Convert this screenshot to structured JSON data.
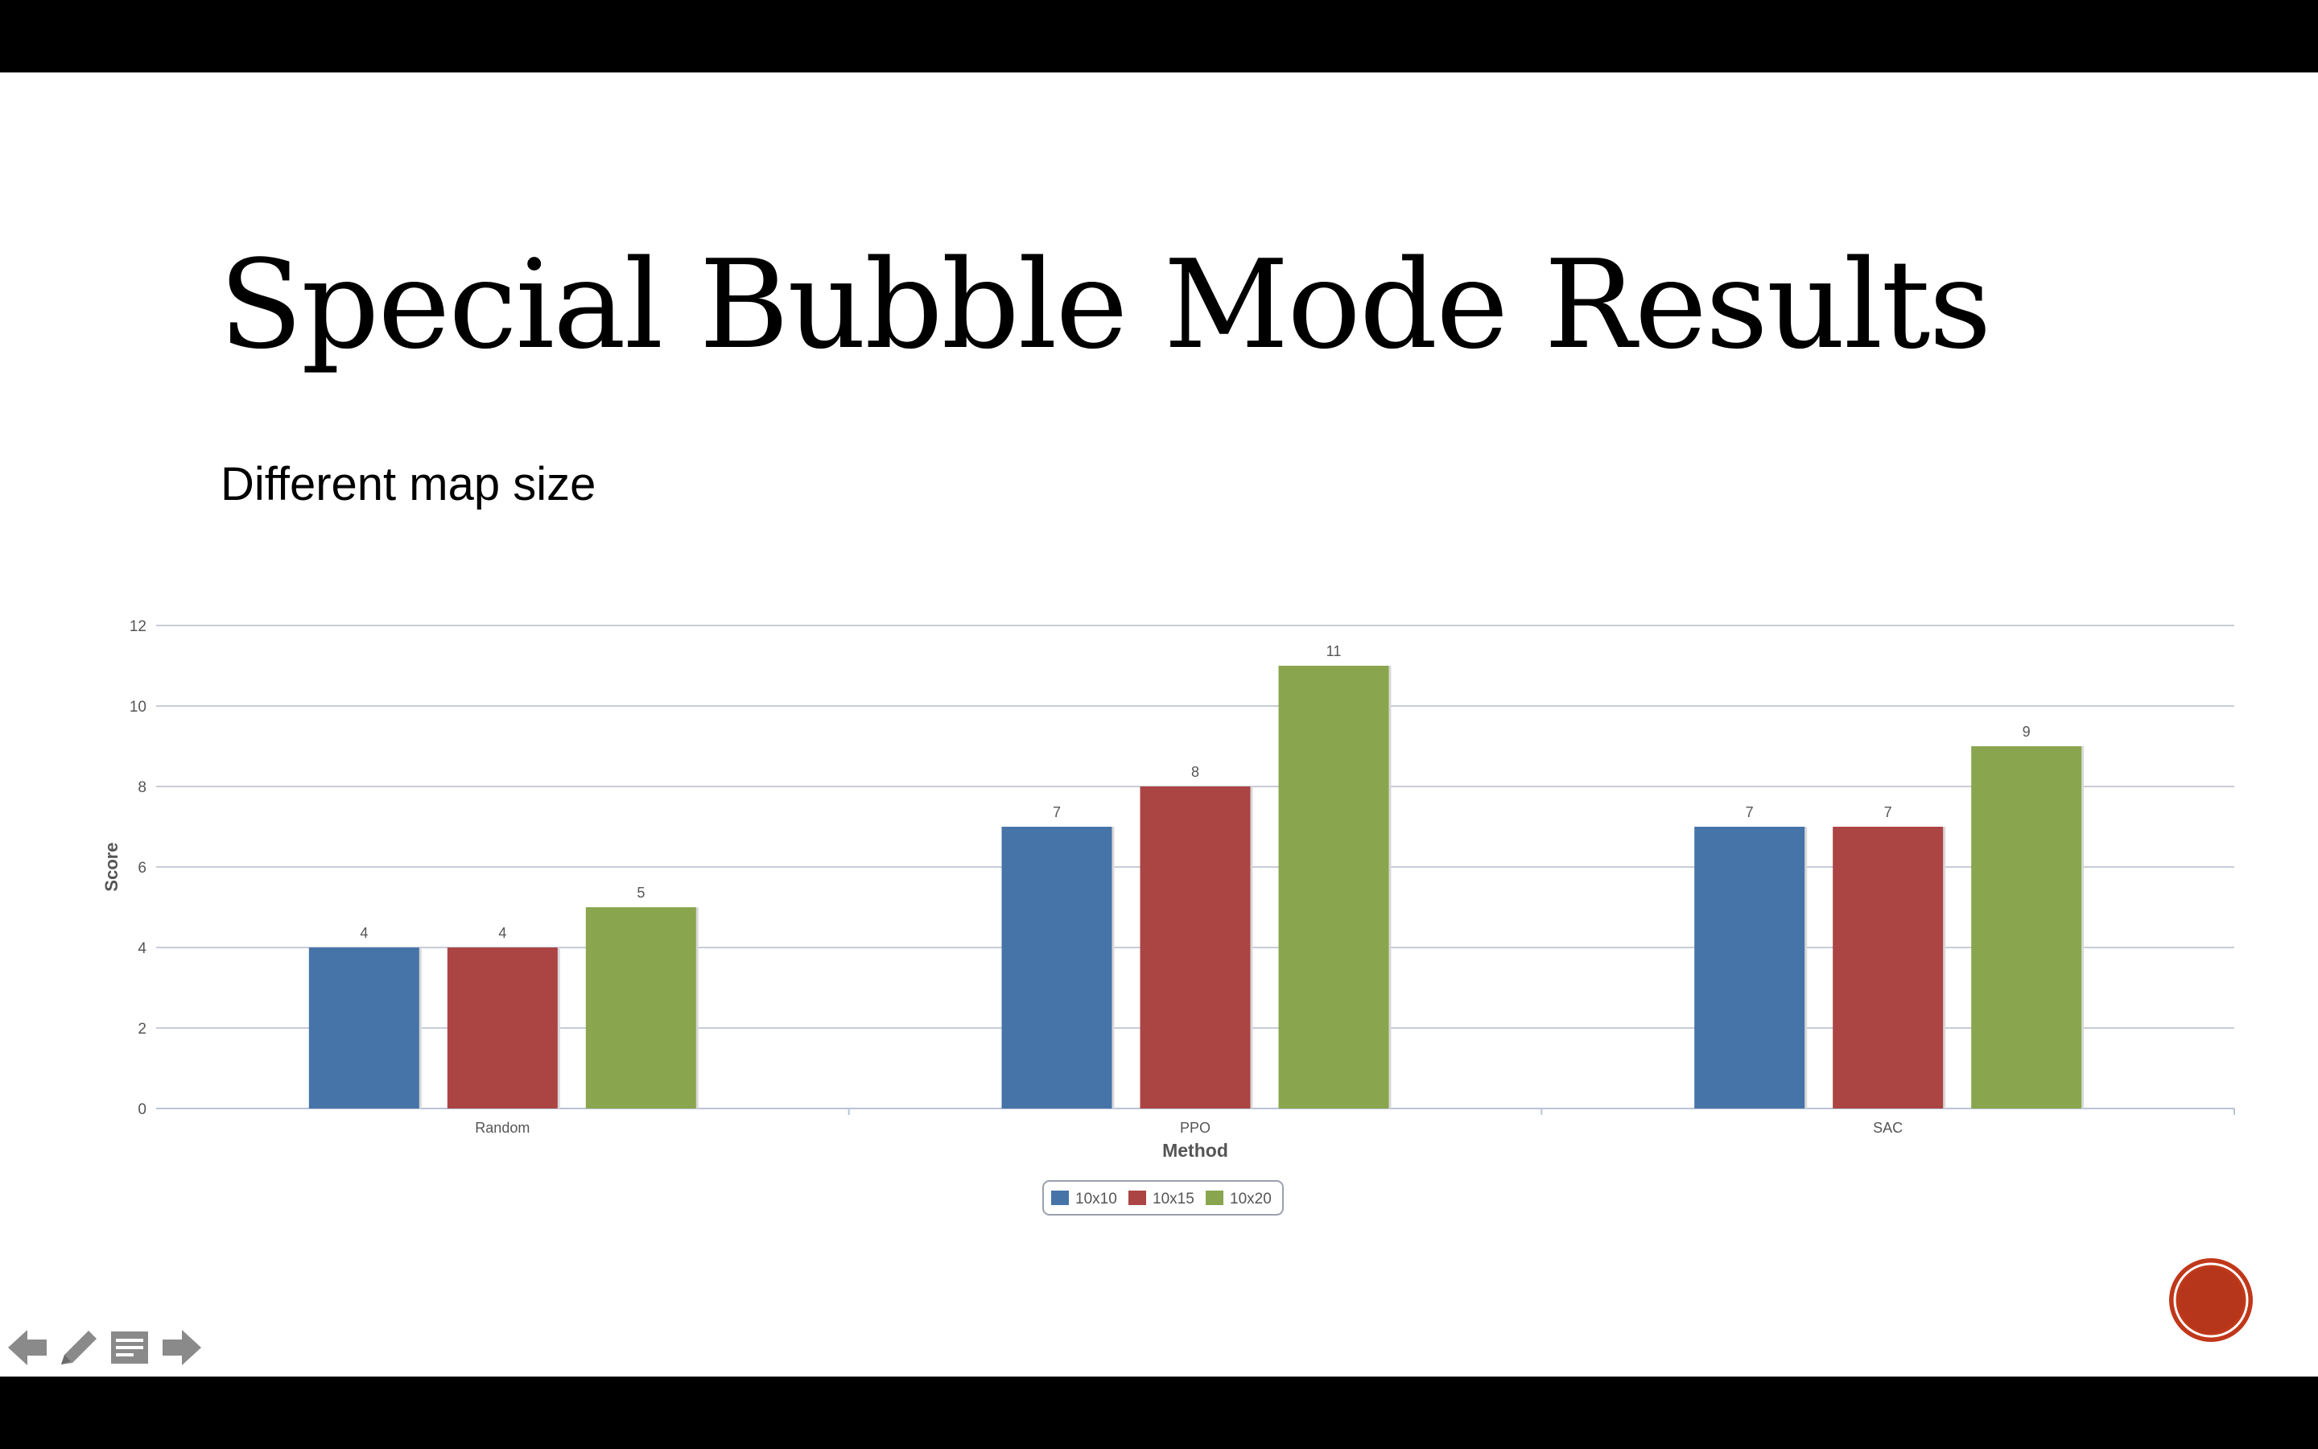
{
  "slide": {
    "title": "Special Bubble Mode Results",
    "subtitle": "Different map size"
  },
  "colors": {
    "10x10": "#4674a8",
    "10x15": "#ab4544",
    "10x20": "#89a64e",
    "gridline": "#c8ccd6",
    "axis_text": "#555555",
    "record_button": "#c0381a"
  },
  "icons": {
    "prev": "arrow-left-icon",
    "pen": "pencil-icon",
    "menu": "slide-menu-icon",
    "next": "arrow-right-icon",
    "record": "record-button-icon"
  },
  "chart_data": {
    "type": "bar",
    "title": "",
    "xlabel": "Method",
    "ylabel": "Score",
    "categories": [
      "Random",
      "PPO",
      "SAC"
    ],
    "series": [
      {
        "name": "10x10",
        "values": [
          4,
          7,
          7
        ]
      },
      {
        "name": "10x15",
        "values": [
          4,
          8,
          7
        ]
      },
      {
        "name": "10x20",
        "values": [
          5,
          11,
          9
        ]
      }
    ],
    "ylim": [
      0,
      12
    ],
    "yticks": [
      "0",
      "2",
      "4",
      "6",
      "8",
      "10",
      "12"
    ],
    "grid": true,
    "legend": "bottom-center",
    "data_labels": true
  }
}
